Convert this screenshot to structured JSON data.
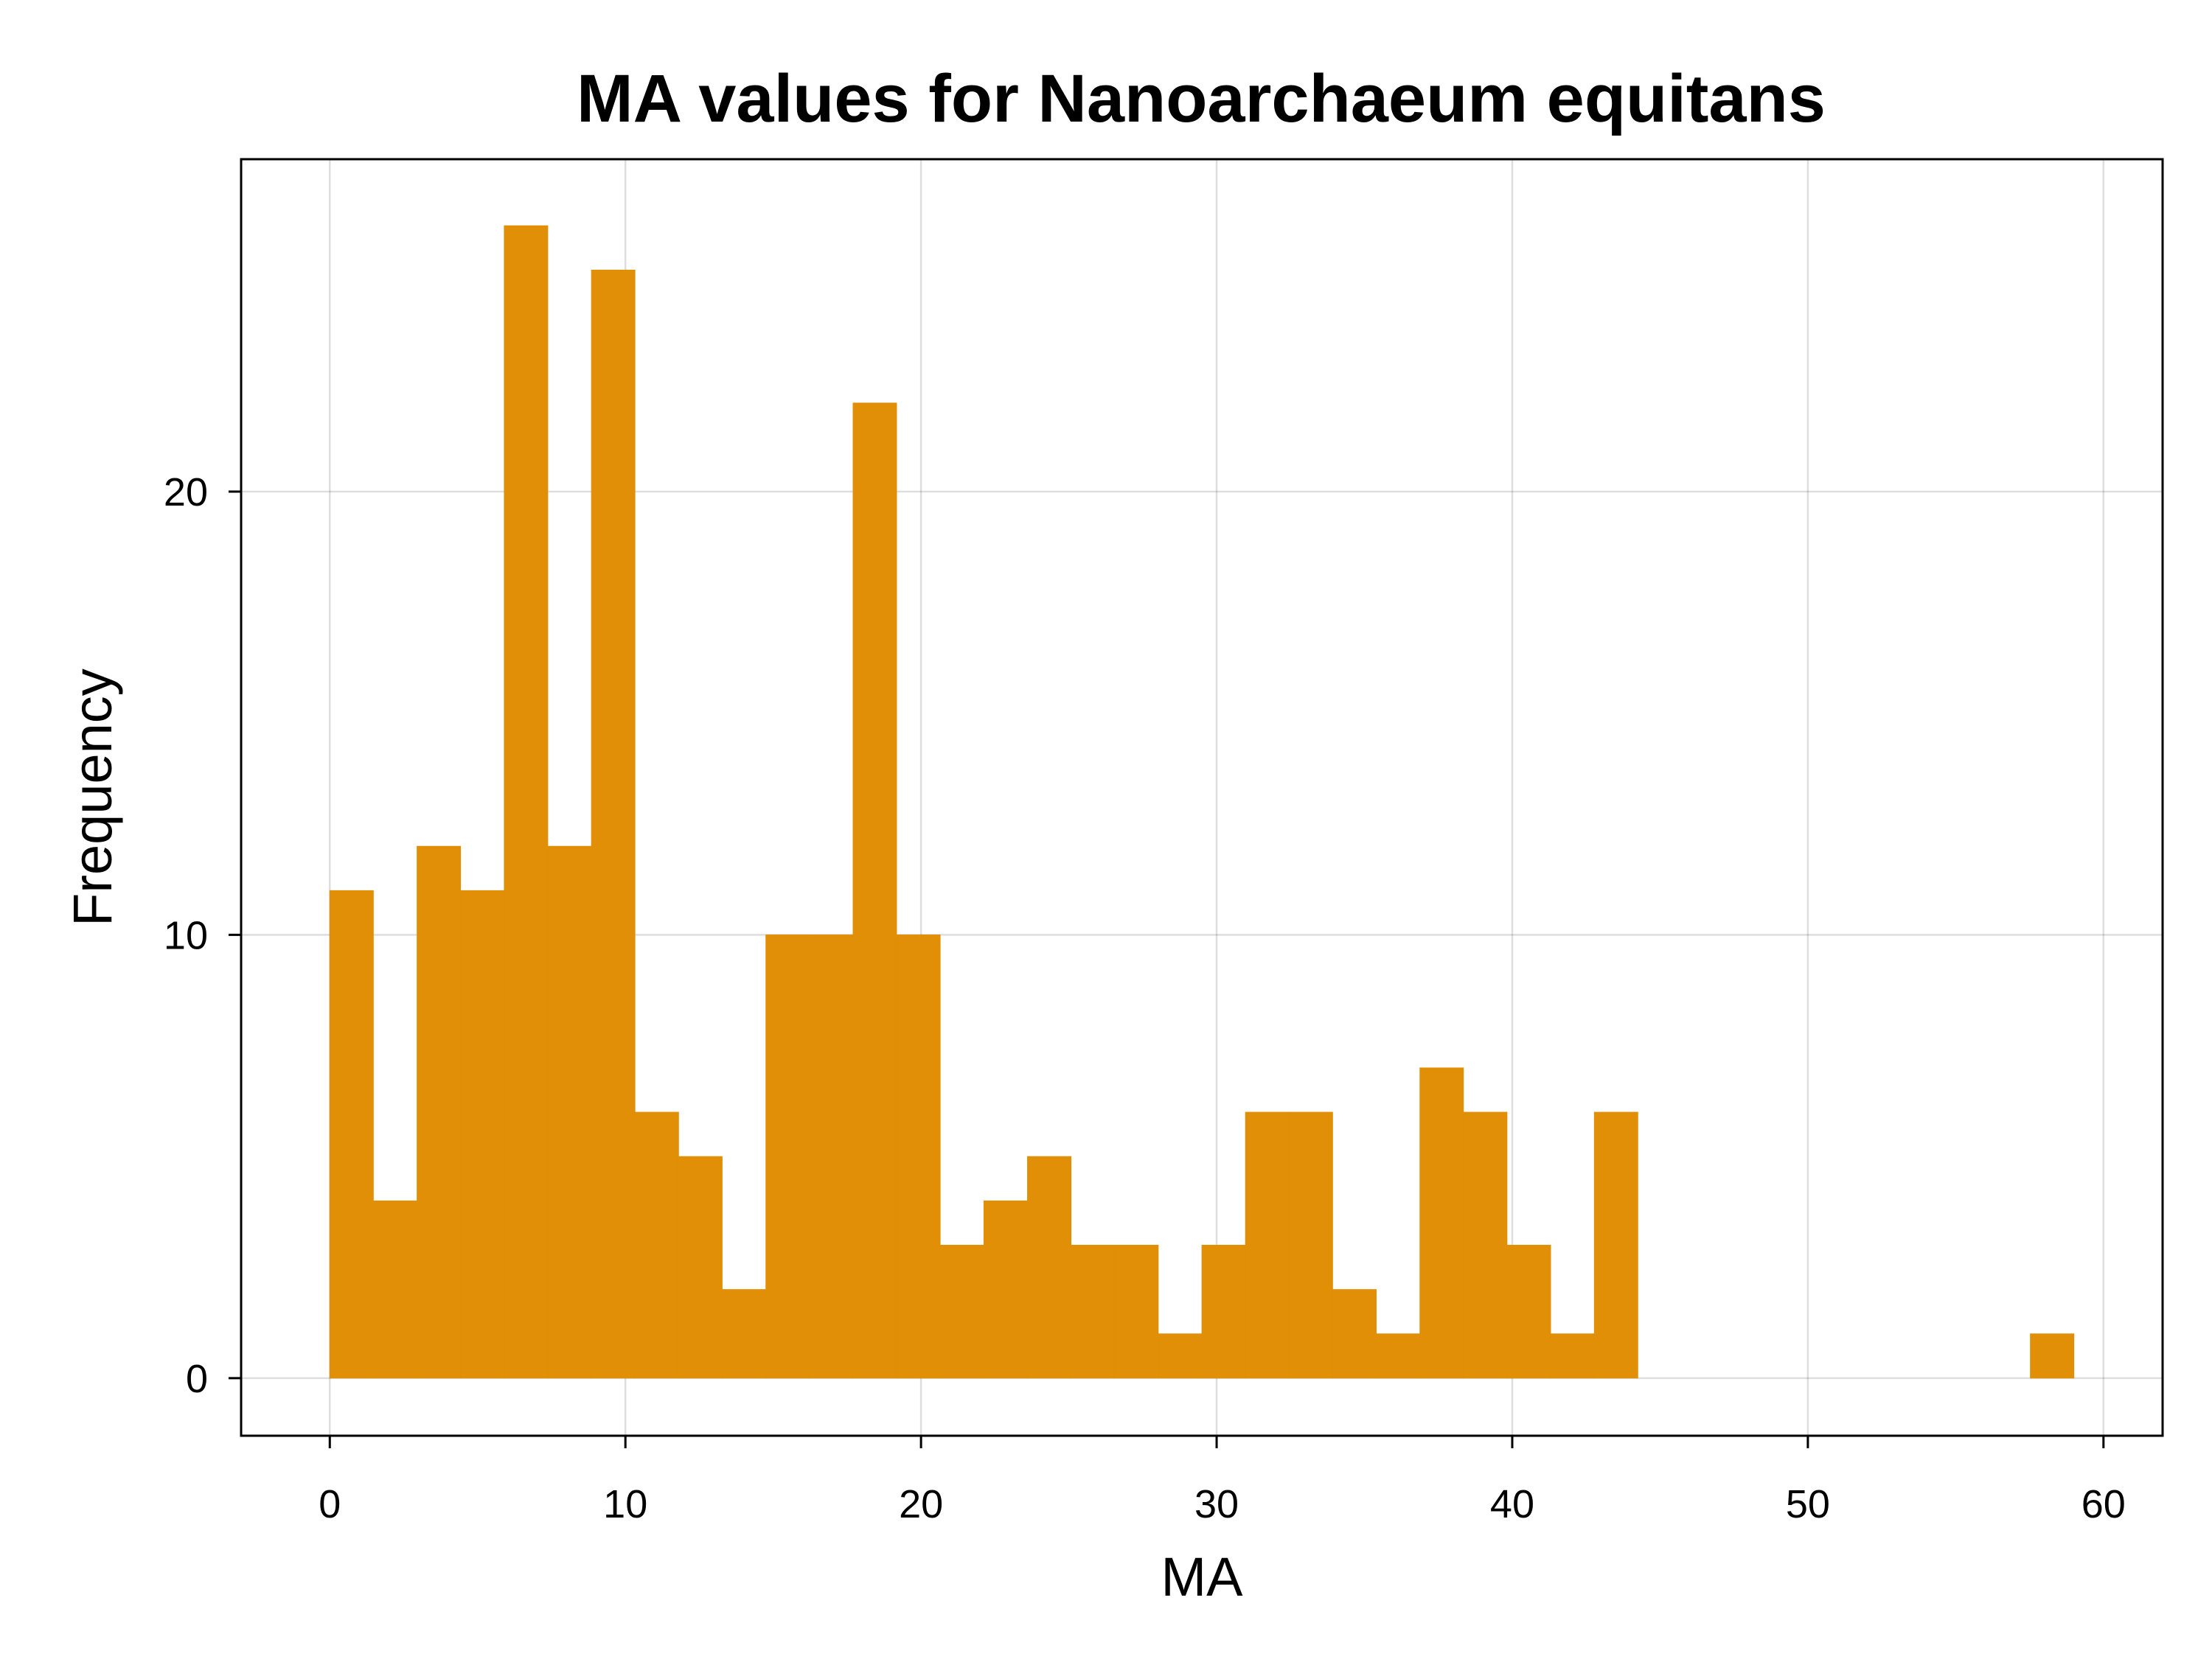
{
  "chart_data": {
    "type": "bar",
    "title": "MA values for Nanoarchaeum equitans",
    "xlabel": "MA",
    "ylabel": "Frequency",
    "xlim": [
      -3,
      62
    ],
    "ylim": [
      -1.3,
      27.5
    ],
    "xticks": [
      "0",
      "10",
      "20",
      "30",
      "40",
      "50",
      "60"
    ],
    "yticks": [
      "0",
      "10",
      "20"
    ],
    "xtick_values": [
      0,
      10,
      20,
      30,
      40,
      50,
      60
    ],
    "ytick_values": [
      0,
      10,
      20
    ],
    "grid": true,
    "bar_color": "#E08F06",
    "bins": {
      "start": 0,
      "width": 1.475,
      "values": [
        11,
        4,
        12,
        11,
        26,
        12,
        25,
        6,
        5,
        2,
        10,
        10,
        22,
        10,
        3,
        4,
        5,
        3,
        3,
        1,
        3,
        6,
        6,
        2,
        1,
        7,
        6,
        3,
        1,
        6,
        0,
        0,
        0,
        0,
        0,
        0,
        0,
        0,
        0,
        1
      ]
    }
  }
}
